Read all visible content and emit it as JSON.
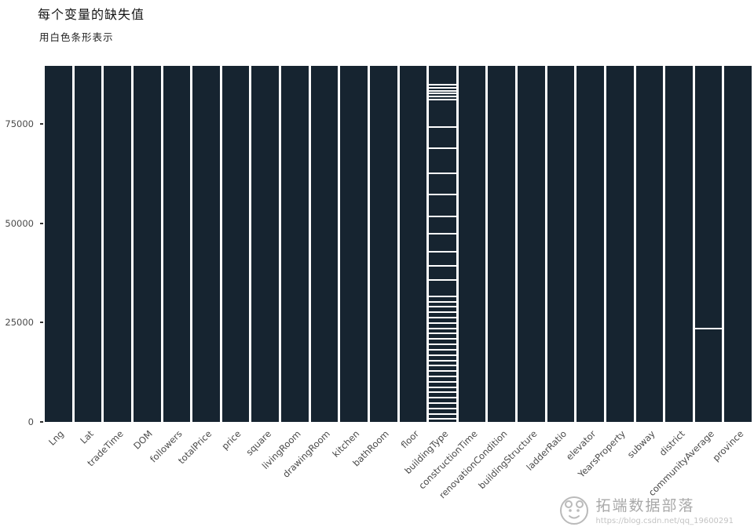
{
  "chart_data": {
    "type": "bar",
    "title": "每个变量的缺失值",
    "subtitle": "用白色条形表示",
    "xlabel": "",
    "ylabel": "",
    "ylim": [
      0,
      89700
    ],
    "yticks": [
      0,
      25000,
      50000,
      75000
    ],
    "grid": false,
    "legend_position": "none",
    "bar_color_meaning": "present value",
    "stripe_color_meaning": "missing value (white bar)",
    "categories": [
      "Lng",
      "Lat",
      "tradeTime",
      "DOM",
      "followers",
      "totalPrice",
      "price",
      "square",
      "livingRoom",
      "drawingRoom",
      "kitchen",
      "bathRoom",
      "floor",
      "buildingType",
      "constructionTime",
      "renovationCondition",
      "buildingStructure",
      "ladderRatio",
      "elevator",
      "YearsProperty",
      "subway",
      "district",
      "communityAverage",
      "province"
    ],
    "values": [
      89700,
      89700,
      89700,
      89700,
      89700,
      89700,
      89700,
      89700,
      89700,
      89700,
      89700,
      89700,
      89700,
      89700,
      89700,
      89700,
      89700,
      89700,
      89700,
      89700,
      89700,
      89700,
      89700,
      89700
    ],
    "missing_marks": {
      "buildingType": [
        85200,
        84300,
        83600,
        82900,
        82200,
        81450,
        74450,
        69070,
        62790,
        57400,
        52030,
        47540,
        43060,
        39470,
        35880,
        31840,
        30500,
        29150,
        27800,
        26460,
        25120,
        23770,
        22430,
        21080,
        19730,
        18390,
        17040,
        15700,
        14350,
        13010,
        11660,
        10320,
        8970,
        7620,
        6280,
        4930,
        3590,
        2240,
        1080
      ],
      "communityAverage": [
        23700
      ]
    }
  },
  "colors": {
    "bar": "#162430",
    "stripe": "#ffffff",
    "background": "#ffffff",
    "axis_text": "#4a4a4a",
    "title_text": "#151515",
    "watermark_text": "#a0a0a0"
  },
  "watermark": {
    "brand": "拓端数据部落",
    "url": "https://blog.csdn.net/qq_19600291"
  }
}
